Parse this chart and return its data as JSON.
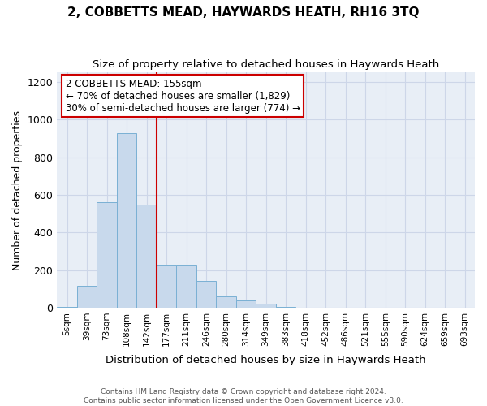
{
  "title": "2, COBBETTS MEAD, HAYWARDS HEATH, RH16 3TQ",
  "subtitle": "Size of property relative to detached houses in Haywards Heath",
  "xlabel": "Distribution of detached houses by size in Haywards Heath",
  "ylabel": "Number of detached properties",
  "bar_labels": [
    "5sqm",
    "39sqm",
    "73sqm",
    "108sqm",
    "142sqm",
    "177sqm",
    "211sqm",
    "246sqm",
    "280sqm",
    "314sqm",
    "349sqm",
    "383sqm",
    "418sqm",
    "452sqm",
    "486sqm",
    "521sqm",
    "555sqm",
    "590sqm",
    "624sqm",
    "659sqm",
    "693sqm"
  ],
  "bar_values": [
    5,
    115,
    560,
    930,
    550,
    230,
    230,
    140,
    60,
    38,
    20,
    5,
    0,
    0,
    0,
    0,
    0,
    0,
    0,
    0,
    0
  ],
  "bar_color": "#c8d9ec",
  "bar_edge_color": "#7ab0d4",
  "vline_x": 4.5,
  "vline_color": "#cc0000",
  "annotation_text": "2 COBBETTS MEAD: 155sqm\n← 70% of detached houses are smaller (1,829)\n30% of semi-detached houses are larger (774) →",
  "annotation_box_facecolor": "#ffffff",
  "annotation_box_edgecolor": "#cc0000",
  "ylim": [
    0,
    1250
  ],
  "yticks": [
    0,
    200,
    400,
    600,
    800,
    1000,
    1200
  ],
  "footer_text": "Contains HM Land Registry data © Crown copyright and database right 2024.\nContains public sector information licensed under the Open Government Licence v3.0.",
  "grid_color": "#cdd6e8",
  "background_color": "#e8eef6"
}
